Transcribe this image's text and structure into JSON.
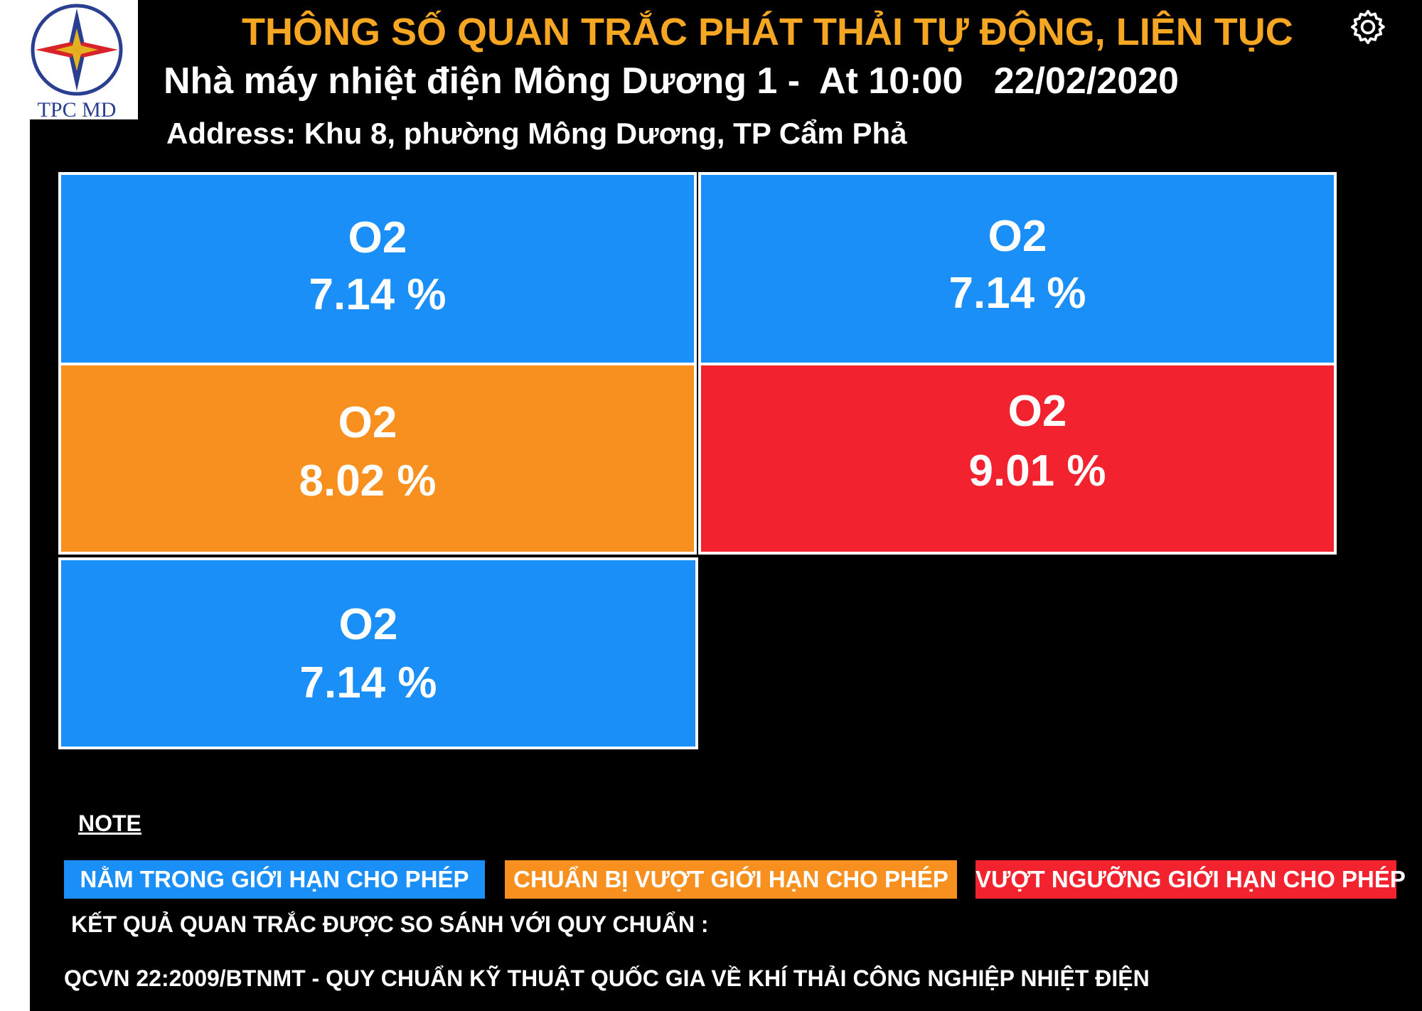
{
  "header": {
    "logo_text": "TPC MD",
    "title": "THÔNG SỐ QUAN TRẮC PHÁT THẢI TỰ ĐỘNG, LIÊN TỤC",
    "subtitle": "Nhà máy nhiệt điện Mông Dương 1 -  At 10:00   22/02/2020",
    "address": "Address: Khu 8, phường Mông Dương, TP Cẩm Phả",
    "settings_icon": "gear-icon"
  },
  "colors": {
    "within_limit": "#1a8ff8",
    "near_limit": "#f7901e",
    "over_limit": "#f2232f",
    "title": "#f5a623"
  },
  "readings": [
    {
      "parameter": "O2",
      "value": "7.14 %",
      "status": "within_limit"
    },
    {
      "parameter": "O2",
      "value": "7.14 %",
      "status": "within_limit"
    },
    {
      "parameter": "O2",
      "value": "8.02 %",
      "status": "near_limit"
    },
    {
      "parameter": "O2",
      "value": "9.01 %",
      "status": "over_limit"
    },
    {
      "parameter": "O2",
      "value": "7.14 %",
      "status": "within_limit"
    }
  ],
  "note": {
    "title": "NOTE",
    "legend": [
      {
        "label": "NẰM TRONG GIỚI HẠN CHO PHÉP",
        "status": "within_limit"
      },
      {
        "label": "CHUẨN BỊ VƯỢT GIỚI HẠN CHO PHÉP",
        "status": "near_limit"
      },
      {
        "label": "VƯỢT NGƯỠNG GIỚI HẠN CHO PHÉP",
        "status": "over_limit"
      }
    ],
    "comparison_label": "KẾT QUẢ QUAN TRẮC ĐƯỢC SO SÁNH VỚI QUY CHUẨN :",
    "standard": "QCVN 22:2009/BTNMT - QUY CHUẨN KỸ THUẬT QUỐC GIA VỀ KHÍ THẢI CÔNG NGHIỆP NHIỆT ĐIỆN"
  }
}
